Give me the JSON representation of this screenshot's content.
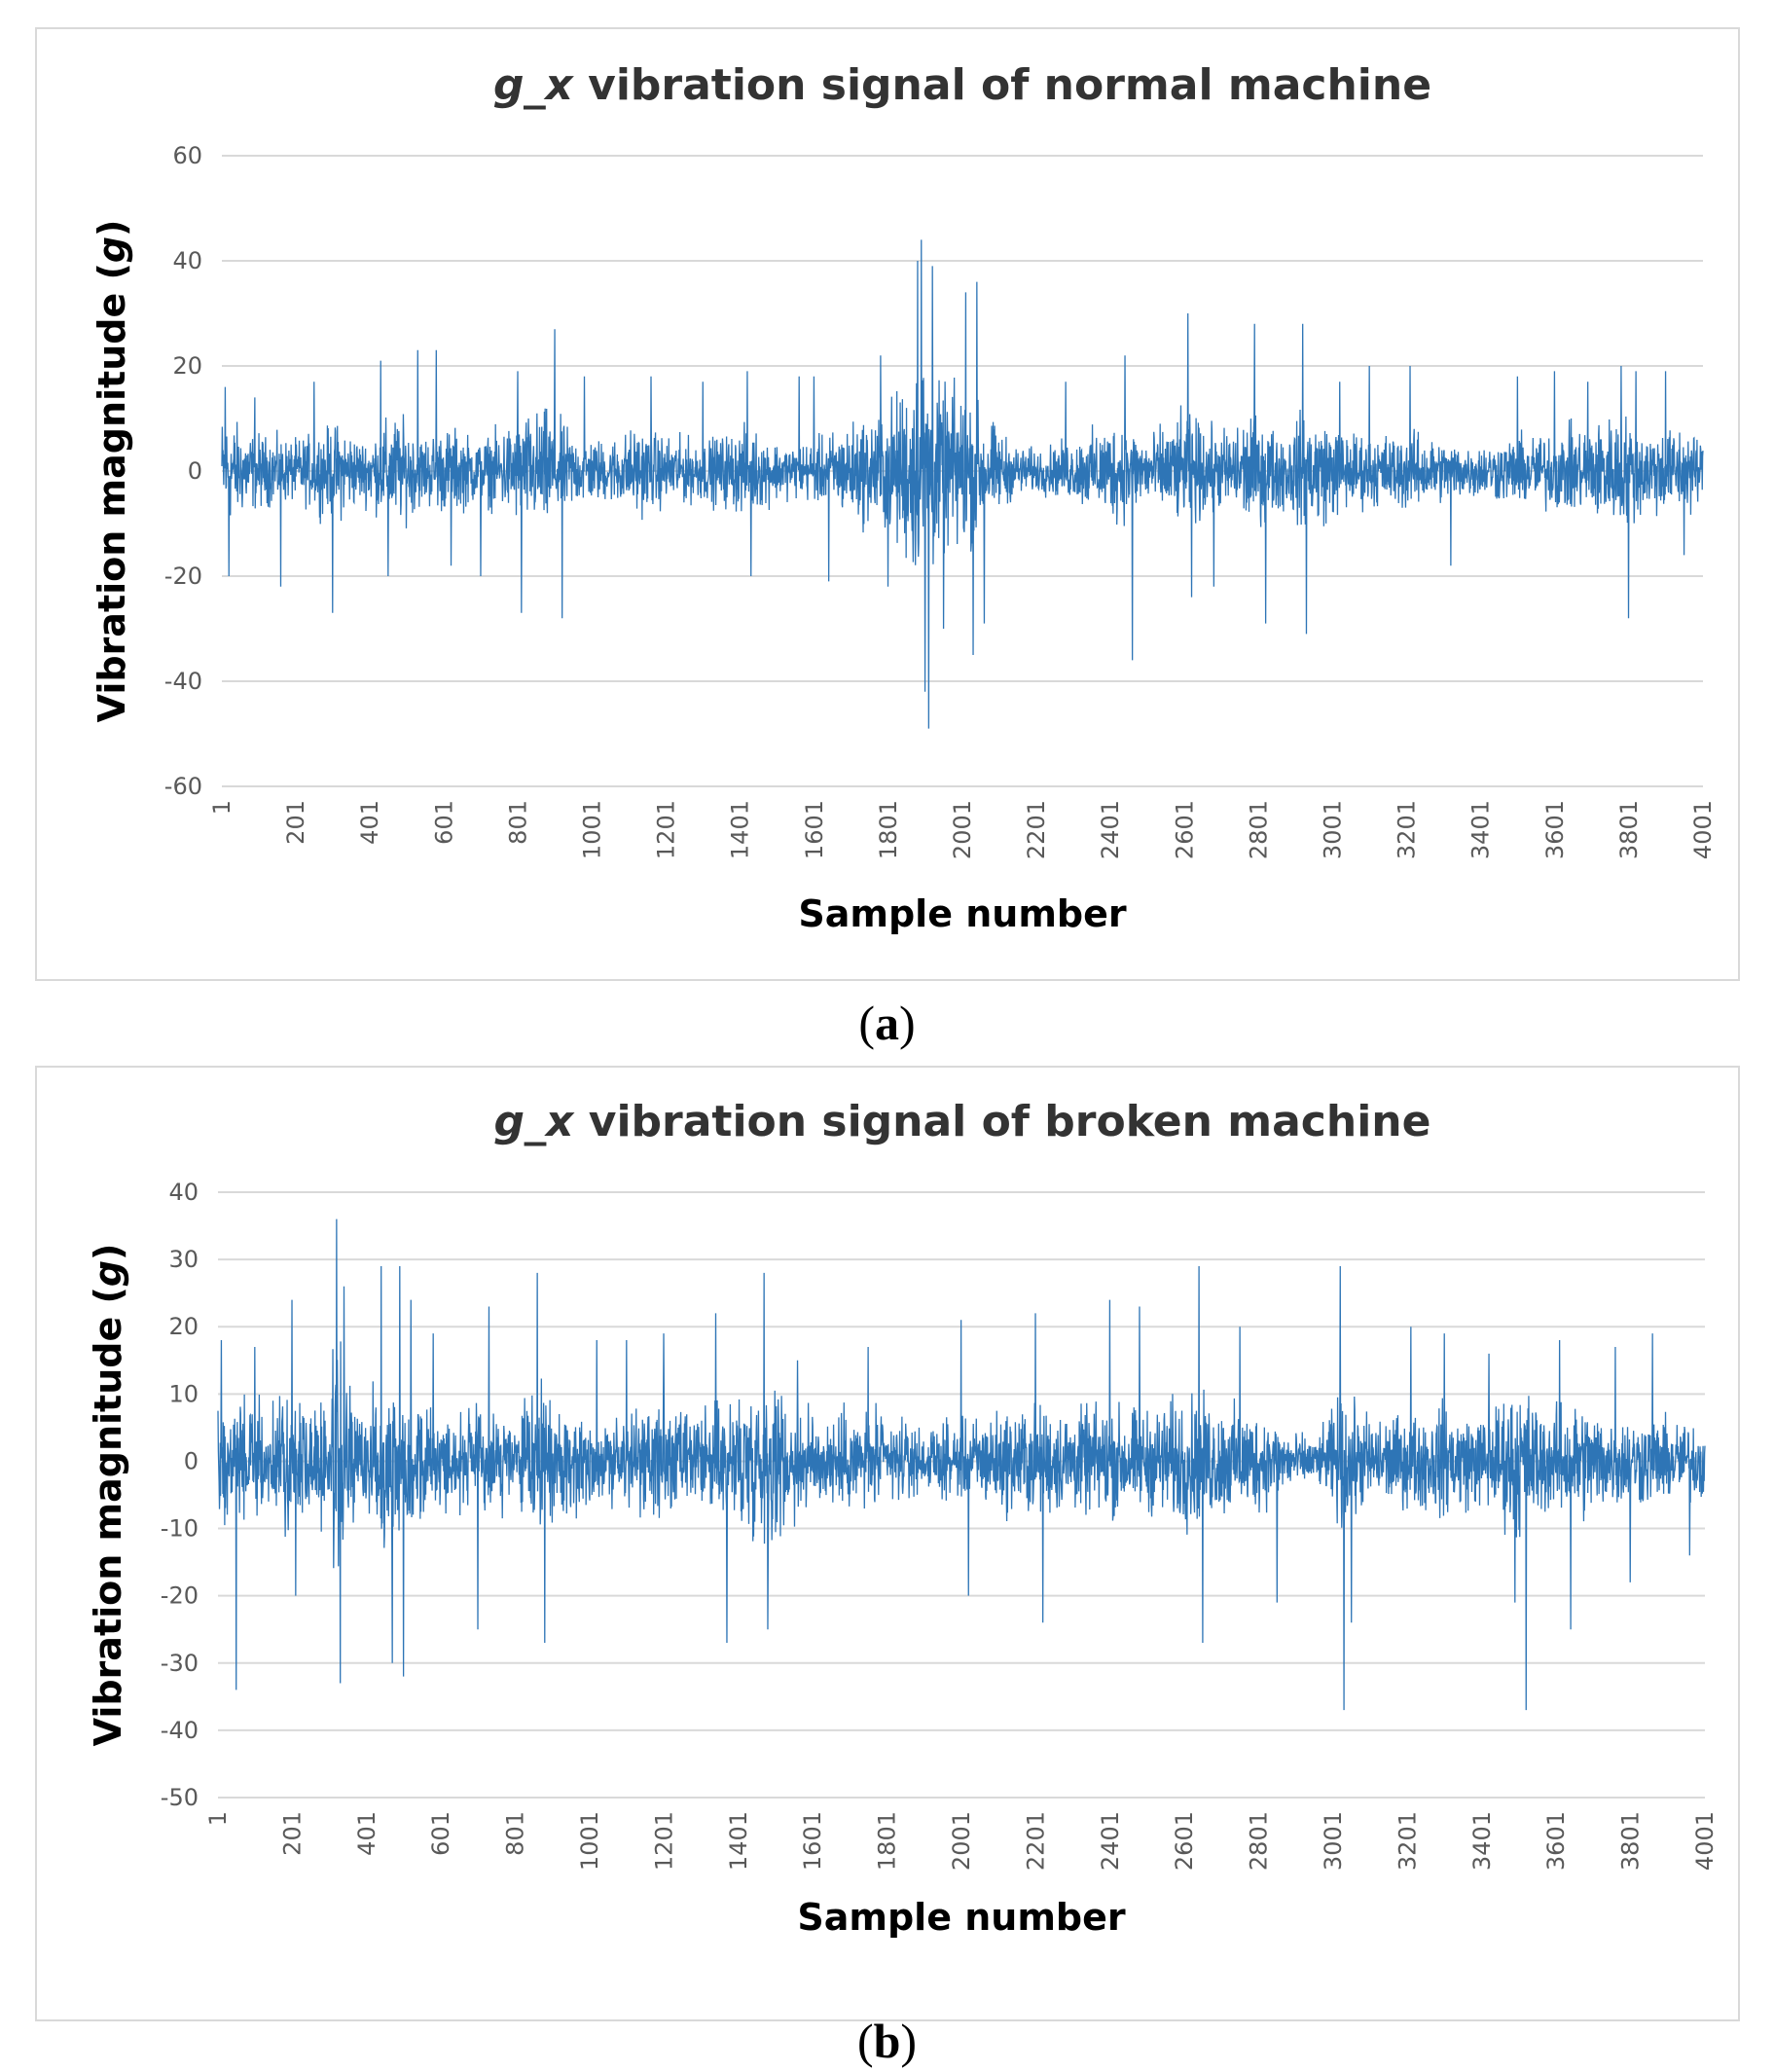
{
  "chart_data": [
    {
      "type": "line",
      "panel_label": "a",
      "title_var": "g_x",
      "title_rest": " vibration signal of normal machine",
      "xlabel": "Sample number",
      "ylabel_prefix": "Vibration magnitude (",
      "ylabel_unit": "g",
      "ylabel_suffix": ")",
      "ylim": [
        -60,
        60
      ],
      "yticks": [
        60,
        40,
        20,
        0,
        -20,
        -40,
        -60
      ],
      "xlim": [
        1,
        4001
      ],
      "xticks": [
        "1",
        "201",
        "401",
        "601",
        "801",
        "1001",
        "1201",
        "1401",
        "1601",
        "1801",
        "2001",
        "2201",
        "2401",
        "2601",
        "2801",
        "3001",
        "3201",
        "3401",
        "3601",
        "3801",
        "4001"
      ],
      "grid": true,
      "line_color": "#2E75B6",
      "n_samples": 4001,
      "envelope": [
        [
          1,
          13
        ],
        [
          60,
          10
        ],
        [
          120,
          8
        ],
        [
          200,
          7
        ],
        [
          260,
          9
        ],
        [
          320,
          11
        ],
        [
          380,
          7
        ],
        [
          470,
          13
        ],
        [
          540,
          8
        ],
        [
          620,
          10
        ],
        [
          700,
          7
        ],
        [
          800,
          12
        ],
        [
          880,
          14
        ],
        [
          960,
          8
        ],
        [
          1040,
          7
        ],
        [
          1120,
          10
        ],
        [
          1200,
          8
        ],
        [
          1300,
          7
        ],
        [
          1420,
          10
        ],
        [
          1520,
          6
        ],
        [
          1600,
          7
        ],
        [
          1700,
          11
        ],
        [
          1790,
          14
        ],
        [
          1860,
          22
        ],
        [
          1900,
          30
        ],
        [
          1940,
          18
        ],
        [
          2000,
          20
        ],
        [
          2060,
          13
        ],
        [
          2140,
          6
        ],
        [
          2200,
          5
        ],
        [
          2300,
          7
        ],
        [
          2420,
          12
        ],
        [
          2500,
          8
        ],
        [
          2600,
          13
        ],
        [
          2700,
          9
        ],
        [
          2780,
          13
        ],
        [
          2860,
          9
        ],
        [
          2940,
          14
        ],
        [
          3020,
          10
        ],
        [
          3100,
          8
        ],
        [
          3200,
          9
        ],
        [
          3300,
          7
        ],
        [
          3400,
          6
        ],
        [
          3500,
          8
        ],
        [
          3600,
          9
        ],
        [
          3700,
          11
        ],
        [
          3780,
          13
        ],
        [
          3850,
          10
        ],
        [
          3950,
          10
        ],
        [
          4001,
          8
        ]
      ],
      "spikes": [
        [
          10,
          16
        ],
        [
          20,
          -20
        ],
        [
          90,
          14
        ],
        [
          160,
          -22
        ],
        [
          250,
          17
        ],
        [
          300,
          -27
        ],
        [
          430,
          21
        ],
        [
          450,
          -20
        ],
        [
          530,
          23
        ],
        [
          580,
          23
        ],
        [
          620,
          -18
        ],
        [
          700,
          -20
        ],
        [
          800,
          19
        ],
        [
          810,
          -27
        ],
        [
          900,
          27
        ],
        [
          920,
          -28
        ],
        [
          980,
          18
        ],
        [
          1160,
          18
        ],
        [
          1300,
          17
        ],
        [
          1420,
          19
        ],
        [
          1430,
          -20
        ],
        [
          1560,
          18
        ],
        [
          1600,
          18
        ],
        [
          1640,
          -21
        ],
        [
          1780,
          22
        ],
        [
          1800,
          -22
        ],
        [
          1880,
          40
        ],
        [
          1890,
          44
        ],
        [
          1900,
          -42
        ],
        [
          1910,
          -49
        ],
        [
          1920,
          39
        ],
        [
          1950,
          -30
        ],
        [
          2010,
          34
        ],
        [
          2030,
          -35
        ],
        [
          2040,
          36
        ],
        [
          2060,
          -29
        ],
        [
          2280,
          17
        ],
        [
          2440,
          22
        ],
        [
          2460,
          -36
        ],
        [
          2610,
          30
        ],
        [
          2620,
          -24
        ],
        [
          2680,
          -22
        ],
        [
          2790,
          28
        ],
        [
          2820,
          -29
        ],
        [
          2920,
          28
        ],
        [
          2930,
          -31
        ],
        [
          3020,
          17
        ],
        [
          3100,
          20
        ],
        [
          3210,
          20
        ],
        [
          3320,
          -18
        ],
        [
          3500,
          18
        ],
        [
          3600,
          19
        ],
        [
          3690,
          17
        ],
        [
          3780,
          20
        ],
        [
          3800,
          -28
        ],
        [
          3820,
          19
        ],
        [
          3900,
          19
        ],
        [
          3950,
          -16
        ]
      ]
    },
    {
      "type": "line",
      "panel_label": "b",
      "title_var": "g_x",
      "title_rest": " vibration signal of broken machine",
      "xlabel": "Sample number",
      "ylabel_prefix": "Vibration magnitude (",
      "ylabel_unit": "g",
      "ylabel_suffix": ")",
      "ylim": [
        -50,
        40
      ],
      "yticks": [
        40,
        30,
        20,
        10,
        0,
        -10,
        -20,
        -30,
        -40,
        -50
      ],
      "xlim": [
        1,
        4001
      ],
      "xticks": [
        "1",
        "201",
        "401",
        "601",
        "801",
        "1001",
        "1201",
        "1401",
        "1601",
        "1801",
        "2001",
        "2201",
        "2401",
        "2601",
        "2801",
        "3001",
        "3201",
        "3401",
        "3601",
        "3801",
        "4001"
      ],
      "grid": true,
      "line_color": "#2E75B6",
      "n_samples": 4001,
      "envelope": [
        [
          1,
          11
        ],
        [
          60,
          12
        ],
        [
          130,
          8
        ],
        [
          200,
          13
        ],
        [
          260,
          9
        ],
        [
          330,
          18
        ],
        [
          380,
          9
        ],
        [
          450,
          16
        ],
        [
          520,
          13
        ],
        [
          600,
          8
        ],
        [
          700,
          9
        ],
        [
          800,
          8
        ],
        [
          870,
          12
        ],
        [
          960,
          9
        ],
        [
          1060,
          8
        ],
        [
          1150,
          9
        ],
        [
          1200,
          11
        ],
        [
          1280,
          8
        ],
        [
          1380,
          12
        ],
        [
          1480,
          15
        ],
        [
          1560,
          10
        ],
        [
          1650,
          8
        ],
        [
          1750,
          9
        ],
        [
          1840,
          7
        ],
        [
          1900,
          5
        ],
        [
          2000,
          7
        ],
        [
          2100,
          9
        ],
        [
          2200,
          10
        ],
        [
          2300,
          9
        ],
        [
          2400,
          10
        ],
        [
          2500,
          9
        ],
        [
          2600,
          12
        ],
        [
          2700,
          10
        ],
        [
          2800,
          9
        ],
        [
          2900,
          5
        ],
        [
          2960,
          4
        ],
        [
          3020,
          12
        ],
        [
          3100,
          8
        ],
        [
          3200,
          8
        ],
        [
          3300,
          10
        ],
        [
          3400,
          8
        ],
        [
          3500,
          14
        ],
        [
          3580,
          9
        ],
        [
          3660,
          11
        ],
        [
          3750,
          8
        ],
        [
          3850,
          8
        ],
        [
          3950,
          7
        ],
        [
          4001,
          7
        ]
      ],
      "spikes": [
        [
          10,
          18
        ],
        [
          50,
          -34
        ],
        [
          100,
          17
        ],
        [
          200,
          24
        ],
        [
          210,
          -20
        ],
        [
          320,
          36
        ],
        [
          330,
          -33
        ],
        [
          340,
          26
        ],
        [
          440,
          29
        ],
        [
          470,
          -30
        ],
        [
          490,
          29
        ],
        [
          500,
          -32
        ],
        [
          520,
          24
        ],
        [
          580,
          19
        ],
        [
          700,
          -25
        ],
        [
          730,
          23
        ],
        [
          860,
          28
        ],
        [
          880,
          -27
        ],
        [
          1020,
          18
        ],
        [
          1100,
          18
        ],
        [
          1200,
          19
        ],
        [
          1340,
          22
        ],
        [
          1370,
          -27
        ],
        [
          1470,
          28
        ],
        [
          1480,
          -25
        ],
        [
          1560,
          15
        ],
        [
          1750,
          17
        ],
        [
          2000,
          21
        ],
        [
          2020,
          -20
        ],
        [
          2200,
          22
        ],
        [
          2220,
          -24
        ],
        [
          2400,
          24
        ],
        [
          2480,
          23
        ],
        [
          2640,
          29
        ],
        [
          2650,
          -27
        ],
        [
          2750,
          20
        ],
        [
          2850,
          -21
        ],
        [
          3020,
          29
        ],
        [
          3030,
          -37
        ],
        [
          3050,
          -24
        ],
        [
          3210,
          20
        ],
        [
          3300,
          19
        ],
        [
          3420,
          16
        ],
        [
          3490,
          -21
        ],
        [
          3520,
          -37
        ],
        [
          3610,
          18
        ],
        [
          3640,
          -25
        ],
        [
          3760,
          17
        ],
        [
          3800,
          -18
        ],
        [
          3860,
          19
        ],
        [
          3960,
          -14
        ]
      ]
    }
  ]
}
